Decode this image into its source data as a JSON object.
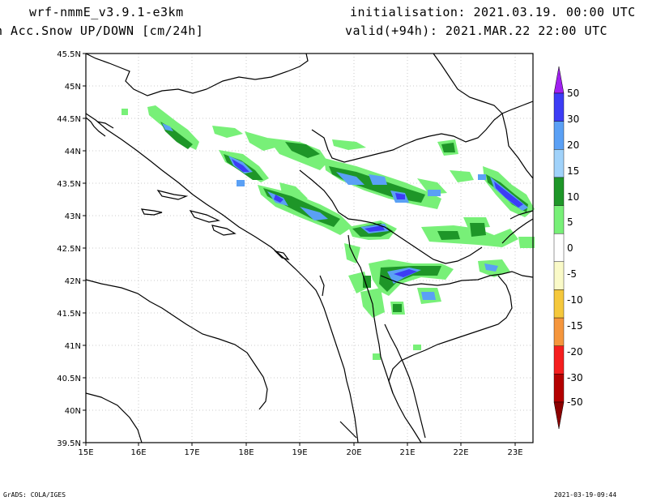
{
  "header": {
    "model": "wrf-nmmE_v3.9.1-e3km",
    "field": "n Acc.Snow UP/DOWN [cm/24h]",
    "init": "initialisation: 2021.03.19.  00:00 UTC",
    "valid": "valid(+94h): 2021.MAR.22 22:00 UTC"
  },
  "footer": {
    "credit": "GrADS: COLA/IGES",
    "timestamp": "2021-03-19-09:44"
  },
  "map": {
    "lat_labels": [
      "45.5N",
      "45N",
      "44.5N",
      "44N",
      "43.5N",
      "43N",
      "42.5N",
      "42N",
      "41.5N",
      "41N",
      "40.5N",
      "40N",
      "39.5N"
    ],
    "lon_labels": [
      "15E",
      "16E",
      "17E",
      "18E",
      "19E",
      "20E",
      "21E",
      "22E",
      "23E"
    ]
  },
  "legend": {
    "labels": [
      "50",
      "30",
      "20",
      "15",
      "10",
      "5",
      "0",
      "-5",
      "-10",
      "-15",
      "-20",
      "-30",
      "-50"
    ],
    "colors": [
      "#a020f0",
      "#3c3cf5",
      "#5aa0f5",
      "#a0d2fa",
      "#1e9628",
      "#78f078",
      "#ffffff",
      "#fafac8",
      "#f5c83c",
      "#f5963c",
      "#f51e1e",
      "#b40000",
      "#8c0000"
    ]
  }
}
